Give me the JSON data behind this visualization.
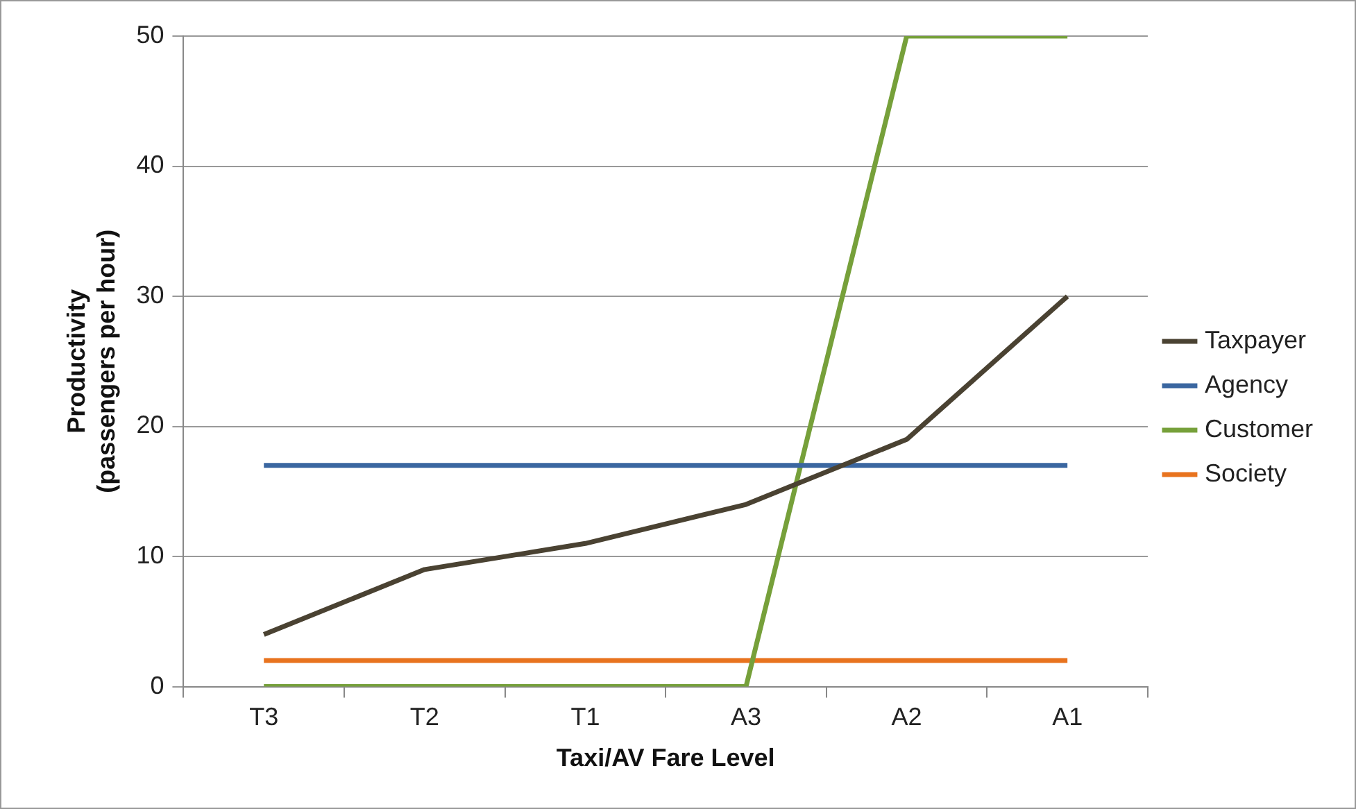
{
  "chart_data": {
    "type": "line",
    "xlabel": "Taxi/AV Fare Level",
    "ylabel": "Productivity\n(passengers per hour)",
    "categories": [
      "T3",
      "T2",
      "T1",
      "A3",
      "A2",
      "A1"
    ],
    "series": [
      {
        "name": "Taxpayer",
        "color": "#4a4232",
        "values": [
          4,
          9,
          11,
          14,
          19,
          30
        ]
      },
      {
        "name": "Agency",
        "color": "#3a66a0",
        "values": [
          17,
          17,
          17,
          17,
          17,
          17
        ]
      },
      {
        "name": "Customer",
        "color": "#76a03a",
        "values": [
          0,
          0,
          0,
          0,
          50,
          50
        ]
      },
      {
        "name": "Society",
        "color": "#e8731e",
        "values": [
          2,
          2,
          2,
          2,
          2,
          2
        ]
      }
    ],
    "ylim": [
      0,
      50
    ],
    "yticks": [
      0,
      10,
      20,
      30,
      40,
      50
    ],
    "grid": "y",
    "legend": "right",
    "marker": "none",
    "line_style": "solid"
  }
}
